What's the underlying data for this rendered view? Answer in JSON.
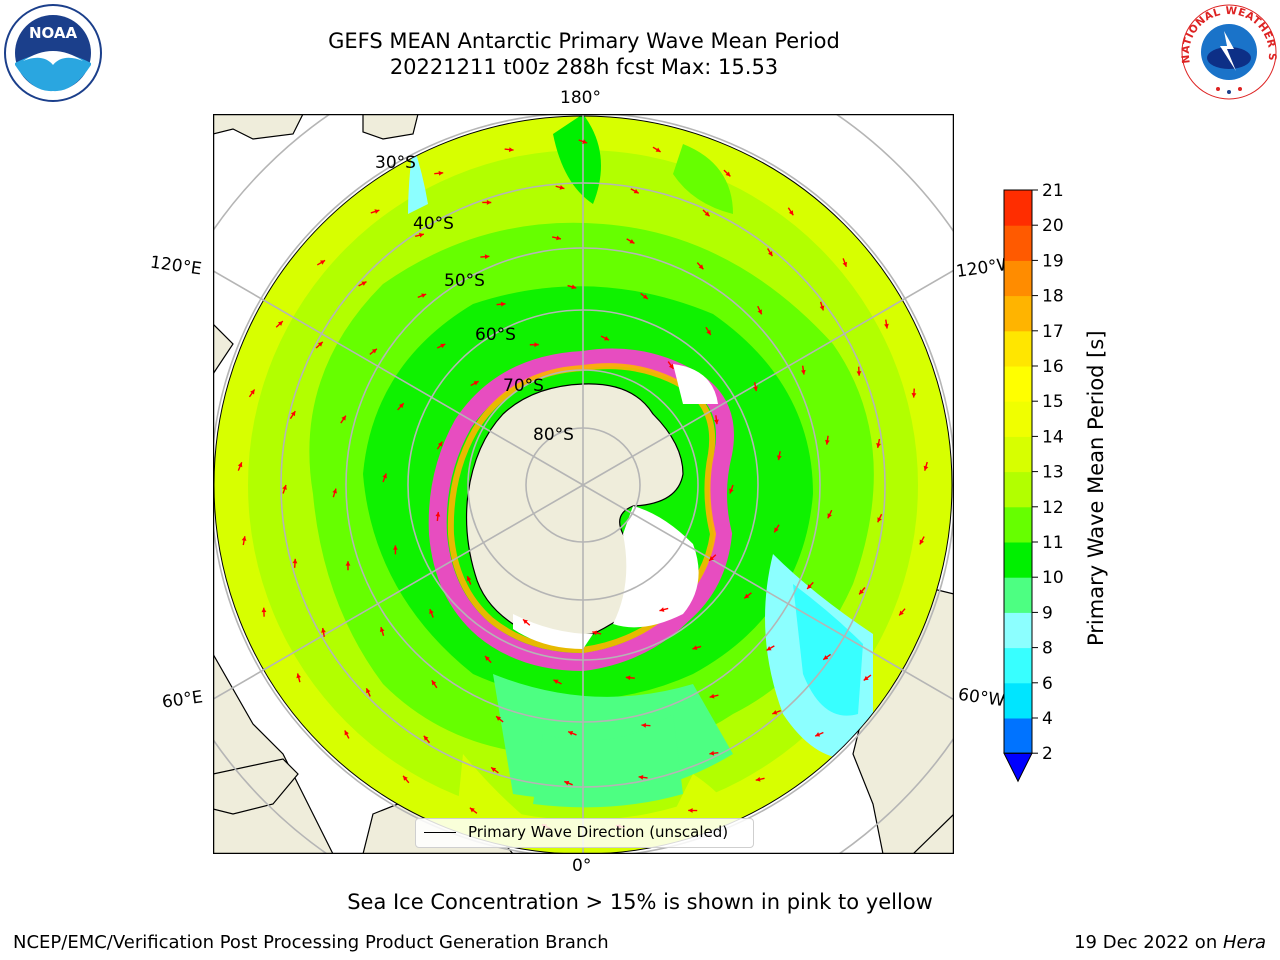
{
  "header": {
    "title_line1": "GEFS MEAN Antarctic Primary Wave Mean Period",
    "title_line2": "20221211 t00z 288h fcst   Max: 15.53"
  },
  "map": {
    "projection": "south polar stereographic",
    "lon_labels": {
      "top": "180°",
      "bottom": "0°",
      "upper_left": "120°E",
      "upper_right": "120°W",
      "lower_left": "60°E",
      "lower_right": "60°W"
    },
    "lat_labels": [
      "30°S",
      "40°S",
      "50°S",
      "60°S",
      "70°S",
      "80°S"
    ],
    "legend_label": "Primary Wave Direction (unscaled)"
  },
  "colorbar": {
    "label": "Primary Wave Mean Period [s]",
    "ticks": [
      "2",
      "4",
      "6",
      "8",
      "9",
      "10",
      "11",
      "12",
      "13",
      "14",
      "15",
      "16",
      "17",
      "18",
      "19",
      "20",
      "21"
    ],
    "colors": [
      "#0073ff",
      "#00e5ff",
      "#38ffff",
      "#8cffff",
      "#4dff82",
      "#00f000",
      "#66ff00",
      "#b2ff00",
      "#d7ff00",
      "#f0ff00",
      "#ffff00",
      "#ffe600",
      "#ffb400",
      "#ff8c00",
      "#ff5a00",
      "#ff2d00",
      "#ff0000"
    ],
    "extend_color": "#0000ff"
  },
  "footer": {
    "subtitle": "Sea Ice Concentration > 15% is shown in pink to yellow",
    "left": "NCEP/EMC/Verification Post Processing Product Generation Branch",
    "right_date": "19 Dec 2022 on ",
    "right_host": "Hera"
  },
  "logos": {
    "noaa_text": "NOAA",
    "nws_text": "NATIONAL WEATHER SERVICE"
  }
}
